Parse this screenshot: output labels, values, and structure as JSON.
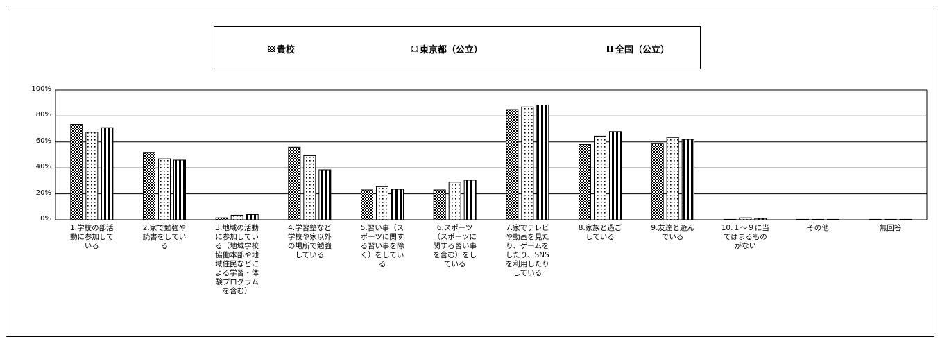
{
  "colors": {
    "axis": "#000000",
    "grid": "#000000",
    "bar_fill": "#ffffff"
  },
  "chart_data": {
    "type": "bar",
    "categories": [
      "1.学校の部活動に参加している",
      "2.家で勉強や読書をしている",
      "3.地域の活動に参加している（地域学校協働本部や地域住民などによる学習・体験プログラムを含む）",
      "4.学習塾など学校や家以外の場所で勉強している",
      "5.習い事（スポーツに関する習い事を除く）をしている",
      "6.スポーツ（スポーツに関する習い事を含む）をしている",
      "7.家でテレビや動画を見たり、ゲームをしたり、SNSを利用したりしている",
      "8.家族と過ごしている",
      "9.友達と遊んでいる",
      "10.１～９に当てはまるものがない",
      "その他",
      "無回答"
    ],
    "series": [
      {
        "name": "貴校",
        "pattern": "crosshatch",
        "values": [
          73.5,
          52,
          1.5,
          56,
          23,
          23,
          85,
          58,
          59,
          0.3,
          0.3,
          0.3
        ]
      },
      {
        "name": "東京都（公立）",
        "pattern": "dots",
        "values": [
          67.5,
          47,
          3.5,
          49.5,
          25.5,
          29,
          87,
          64.5,
          63.5,
          1.5,
          0.3,
          0.3
        ]
      },
      {
        "name": "全国（公立）",
        "pattern": "stripes",
        "values": [
          71,
          46,
          4,
          38.5,
          23.5,
          30.5,
          88.5,
          68,
          62,
          1,
          0.3,
          0.3
        ]
      }
    ],
    "yticks": [
      "0%",
      "20%",
      "40%",
      "60%",
      "80%",
      "100%"
    ],
    "ylim": [
      0,
      100
    ],
    "grid": true,
    "legend_position": "top"
  }
}
